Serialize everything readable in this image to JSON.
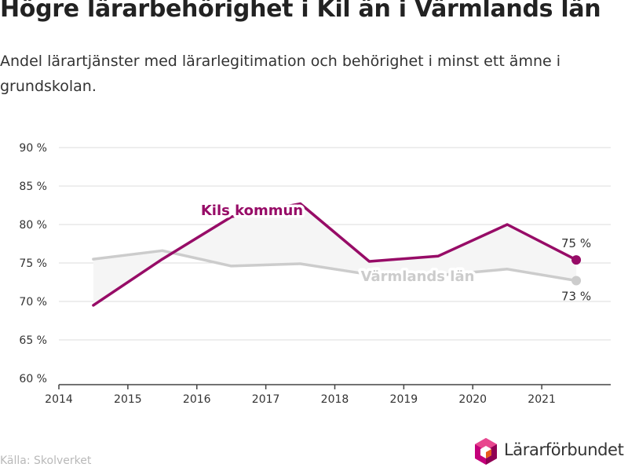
{
  "header": {
    "title": "Högre lärarbehörighet i Kil än i Värmlands län",
    "subtitle": "Andel lärartjänster med lärarlegitimation och behörighet i minst ett ämne i grundskolan."
  },
  "footer": {
    "source": "Källa: Skolverket",
    "logo_text": "Lärarförbundet",
    "logo_icon": "hexagon-logo-icon"
  },
  "colors": {
    "kil": "#970c67",
    "varmland": "#cccccc",
    "fill": "#f5f5f5",
    "grid": "#dddddd",
    "axis": "#444444"
  },
  "chart_data": {
    "type": "line",
    "x_axis": {
      "min": 2014,
      "max": 2022,
      "ticks": [
        2014,
        2015,
        2016,
        2017,
        2018,
        2019,
        2020,
        2021
      ]
    },
    "y_axis": {
      "min": 60,
      "max": 90,
      "ticks": [
        60,
        65,
        70,
        75,
        80,
        85,
        90
      ],
      "tick_labels": [
        "60 %",
        "65 %",
        "70 %",
        "75 %",
        "80 %",
        "85 %",
        "90 %"
      ]
    },
    "grid": true,
    "series": [
      {
        "name": "Kils kommun",
        "key": "kil",
        "x": [
          2014.5,
          2015.5,
          2016.5,
          2017.5,
          2018.5,
          2019.5,
          2020.5,
          2021.5
        ],
        "values": [
          69.5,
          75.5,
          81.0,
          82.7,
          75.2,
          75.9,
          80.0,
          75.4
        ],
        "end_label": "75 %"
      },
      {
        "name": "Värmlands län",
        "key": "varmland",
        "x": [
          2014.5,
          2015.5,
          2016.5,
          2017.5,
          2018.5,
          2019.5,
          2020.5,
          2021.5
        ],
        "values": [
          75.5,
          76.6,
          74.6,
          74.9,
          73.5,
          73.4,
          74.2,
          72.7
        ],
        "end_label": "73 %"
      }
    ]
  }
}
